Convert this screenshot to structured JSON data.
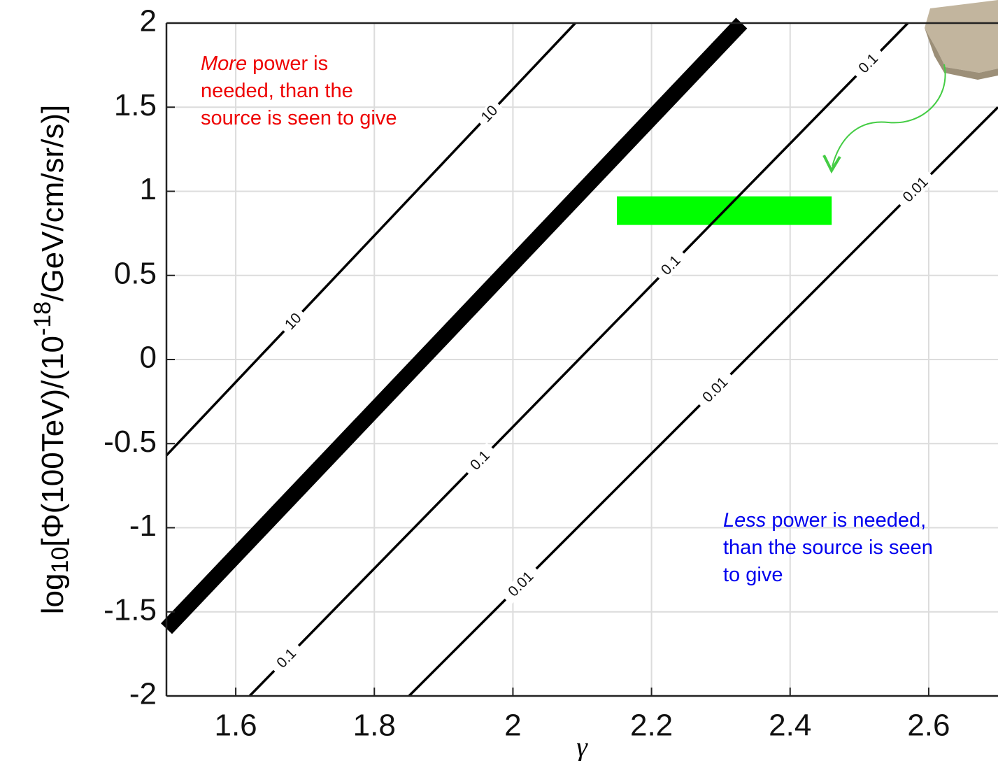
{
  "chart_data": {
    "type": "line",
    "xlabel": "γ",
    "ylabel": [
      "log",
      "10",
      "[Φ(100TeV)/(10",
      "-18",
      "/GeV/cm/sr/s)]"
    ],
    "xlim": [
      1.5,
      2.7
    ],
    "ylim": [
      -2,
      2
    ],
    "xticks": [
      1.6,
      1.8,
      2,
      2.2,
      2.4,
      2.6
    ],
    "yticks": [
      -2,
      -1.5,
      -1,
      -0.5,
      0,
      0.5,
      1,
      1.5,
      2
    ],
    "grid": true,
    "series": [
      {
        "name": "10",
        "color": "#000000",
        "x": [
          1.5,
          2.09
        ],
        "values": [
          -0.57,
          2
        ]
      },
      {
        "color": "#000000",
        "x": [
          1.5,
          2.33
        ],
        "values": [
          -1.6,
          2
        ]
      },
      {
        "name": "0.1",
        "color": "#000000",
        "x": [
          1.62,
          2.57
        ],
        "values": [
          -2,
          2
        ]
      },
      {
        "name": "0.01",
        "color": "#000000",
        "x": [
          1.85,
          2.7
        ],
        "values": [
          -2,
          1.5
        ]
      }
    ],
    "region": {
      "x": [
        2.15,
        2.46
      ],
      "y": [
        0.8,
        0.97
      ],
      "color": "#00ff00"
    },
    "annotations": [
      {
        "color": "#ee0000",
        "lines": [
          [
            "More",
            " power is"
          ],
          [
            "needed, than the"
          ],
          [
            "source is seen to give"
          ]
        ]
      },
      {
        "color": "#0000ee",
        "lines": [
          [
            "Less",
            " power is needed,"
          ],
          [
            "than the source is seen"
          ],
          [
            "to give"
          ]
        ]
      }
    ]
  }
}
